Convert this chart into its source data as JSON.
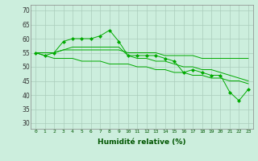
{
  "title": "",
  "xlabel": "Humidité relative (%)",
  "ylabel": "",
  "background_color": "#cceedd",
  "grid_color": "#aaccbb",
  "line_color": "#00aa00",
  "xlim": [
    -0.5,
    23.5
  ],
  "ylim": [
    28,
    72
  ],
  "yticks": [
    30,
    35,
    40,
    45,
    50,
    55,
    60,
    65,
    70
  ],
  "xticks": [
    0,
    1,
    2,
    3,
    4,
    5,
    6,
    7,
    8,
    9,
    10,
    11,
    12,
    13,
    14,
    15,
    16,
    17,
    18,
    19,
    20,
    21,
    22,
    23
  ],
  "series1": [
    55,
    54,
    55,
    59,
    60,
    60,
    60,
    61,
    63,
    59,
    54,
    54,
    54,
    54,
    53,
    52,
    48,
    49,
    48,
    47,
    47,
    41,
    38,
    42
  ],
  "series2": [
    55,
    55,
    55,
    56,
    56,
    56,
    56,
    56,
    56,
    56,
    55,
    55,
    55,
    55,
    54,
    54,
    54,
    54,
    53,
    53,
    53,
    53,
    53,
    53
  ],
  "series3": [
    55,
    55,
    55,
    56,
    57,
    57,
    57,
    57,
    57,
    57,
    54,
    53,
    53,
    52,
    52,
    51,
    50,
    50,
    49,
    49,
    48,
    47,
    46,
    45
  ],
  "series4": [
    55,
    54,
    53,
    53,
    53,
    52,
    52,
    52,
    51,
    51,
    51,
    50,
    50,
    49,
    49,
    48,
    48,
    47,
    47,
    46,
    46,
    45,
    45,
    44
  ]
}
